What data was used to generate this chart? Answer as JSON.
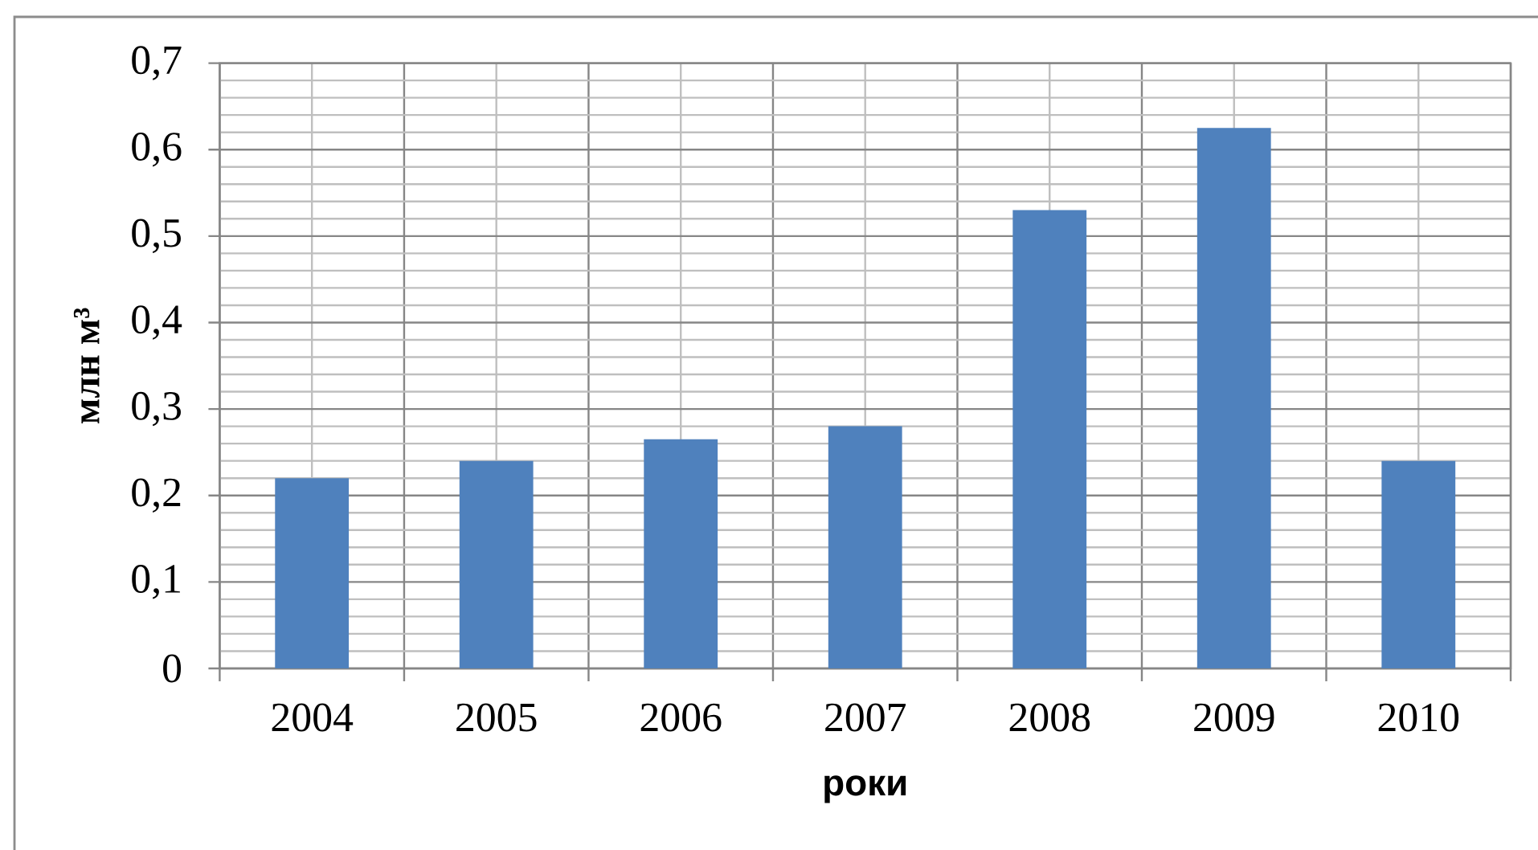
{
  "chart_data": {
    "type": "bar",
    "categories": [
      "2004",
      "2005",
      "2006",
      "2007",
      "2008",
      "2009",
      "2010"
    ],
    "values": [
      0.22,
      0.24,
      0.265,
      0.28,
      0.53,
      0.625,
      0.24
    ],
    "color": "#4f81bd",
    "xlabel": "роки",
    "ylabel": "млн м³",
    "ylim": [
      0,
      0.7
    ],
    "yticks": [
      0,
      {
        "value": 0.1,
        "label": "0,1"
      },
      {
        "value": 0.2,
        "label": "0,2"
      },
      {
        "value": 0.3,
        "label": "0,3"
      },
      {
        "value": 0.4,
        "label": "0,4"
      },
      {
        "value": 0.5,
        "label": "0,5"
      },
      {
        "value": 0.6,
        "label": "0,6"
      },
      {
        "value": 0.7,
        "label": "0,7"
      }
    ],
    "grid": true
  }
}
